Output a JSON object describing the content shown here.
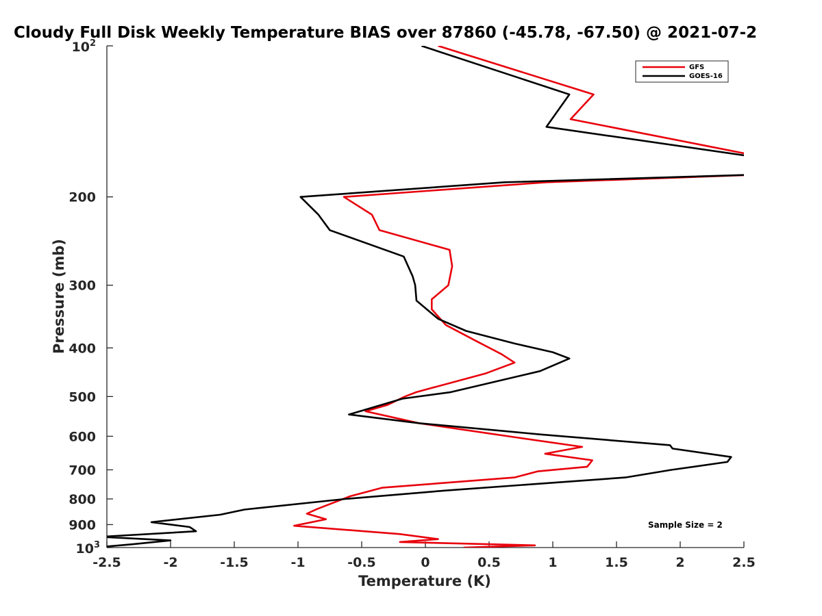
{
  "chart_data": {
    "type": "line",
    "title": "Cloudy Full Disk Weekly Temperature BIAS over 87860 (-45.78, -67.50) @ 2021-07-2",
    "xlabel": "Temperature (K)",
    "ylabel": "Pressure (mb)",
    "xlim": [
      -2.5,
      2.5
    ],
    "ylim": [
      100,
      1000
    ],
    "y_scale": "log",
    "y_reversed": true,
    "grid": false,
    "legend_position": "top-right",
    "x_ticks": [
      -2.5,
      -2,
      -1.5,
      -1,
      -0.5,
      0,
      0.5,
      1,
      1.5,
      2,
      2.5
    ],
    "x_tick_labels": [
      "-2.5",
      "-2",
      "-1.5",
      "-1",
      "-0.5",
      "0",
      "0.5",
      "1",
      "1.5",
      "2",
      "2.5"
    ],
    "y_ticks": [
      200,
      300,
      400,
      500,
      600,
      700,
      800,
      900
    ],
    "y_tick_labels": [
      "200",
      "300",
      "400",
      "500",
      "600",
      "700",
      "800",
      "900"
    ],
    "y_top_label": {
      "base": "10",
      "exp": "2"
    },
    "y_bottom_label": {
      "base": "10",
      "exp": "3"
    },
    "annotation": "Sample Size = 2",
    "series": [
      {
        "name": "GFS",
        "color": "#e8000b",
        "points": [
          [
            0.1,
            100
          ],
          [
            1.32,
            125
          ],
          [
            1.14,
            140
          ],
          [
            2.62,
            166
          ],
          [
            2.78,
            180
          ],
          [
            0.95,
            187
          ],
          [
            -0.64,
            200
          ],
          [
            -0.42,
            217
          ],
          [
            -0.36,
            233
          ],
          [
            0.19,
            255
          ],
          [
            0.21,
            275
          ],
          [
            0.18,
            300
          ],
          [
            0.05,
            320
          ],
          [
            0.05,
            335
          ],
          [
            0.16,
            360
          ],
          [
            0.42,
            390
          ],
          [
            0.6,
            412
          ],
          [
            0.7,
            428
          ],
          [
            0.47,
            450
          ],
          [
            0.06,
            480
          ],
          [
            -0.07,
            490
          ],
          [
            -0.16,
            500
          ],
          [
            -0.3,
            520
          ],
          [
            -0.47,
            535
          ],
          [
            -0.05,
            565
          ],
          [
            0.65,
            600
          ],
          [
            1.23,
            630
          ],
          [
            0.94,
            650
          ],
          [
            1.31,
            670
          ],
          [
            1.27,
            690
          ],
          [
            0.88,
            705
          ],
          [
            0.7,
            725
          ],
          [
            -0.34,
            760
          ],
          [
            -0.59,
            790
          ],
          [
            -0.85,
            838
          ],
          [
            -0.93,
            856
          ],
          [
            -0.78,
            878
          ],
          [
            -1.03,
            905
          ],
          [
            -0.2,
            940
          ],
          [
            0.1,
            962
          ],
          [
            -0.2,
            975
          ],
          [
            0.86,
            990
          ],
          [
            0.3,
            1000
          ]
        ]
      },
      {
        "name": "GOES-16",
        "color": "#000000",
        "points": [
          [
            -0.03,
            100
          ],
          [
            1.13,
            125
          ],
          [
            0.95,
            145
          ],
          [
            2.55,
            166
          ],
          [
            2.78,
            180
          ],
          [
            0.62,
            187
          ],
          [
            -0.98,
            200
          ],
          [
            -0.84,
            217
          ],
          [
            -0.75,
            233
          ],
          [
            -0.17,
            263
          ],
          [
            -0.1,
            288
          ],
          [
            -0.08,
            300
          ],
          [
            -0.07,
            322
          ],
          [
            0.1,
            350
          ],
          [
            0.32,
            370
          ],
          [
            0.7,
            392
          ],
          [
            1.0,
            408
          ],
          [
            1.13,
            420
          ],
          [
            0.9,
            445
          ],
          [
            0.2,
            490
          ],
          [
            -0.18,
            505
          ],
          [
            -0.6,
            543
          ],
          [
            -0.05,
            565
          ],
          [
            0.9,
            595
          ],
          [
            1.92,
            625
          ],
          [
            1.94,
            635
          ],
          [
            2.4,
            660
          ],
          [
            2.37,
            675
          ],
          [
            1.93,
            700
          ],
          [
            1.57,
            725
          ],
          [
            0.15,
            770
          ],
          [
            -0.63,
            800
          ],
          [
            -1.42,
            840
          ],
          [
            -1.61,
            860
          ],
          [
            -2.15,
            890
          ],
          [
            -1.85,
            910
          ],
          [
            -1.8,
            928
          ],
          [
            -2.55,
            952
          ],
          [
            -2.0,
            968
          ],
          [
            -2.3,
            985
          ],
          [
            -2.6,
            1000
          ]
        ]
      }
    ]
  }
}
